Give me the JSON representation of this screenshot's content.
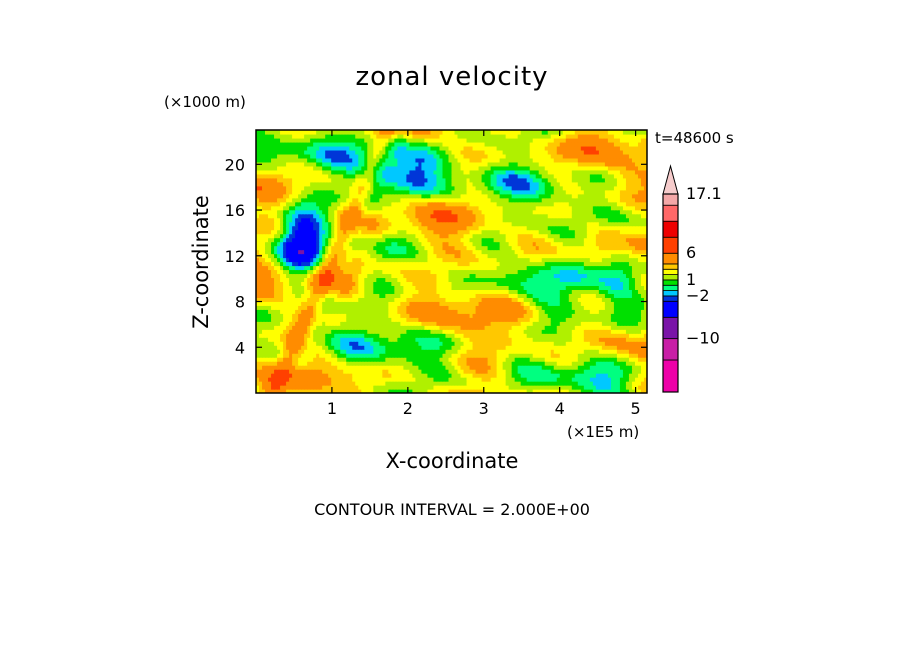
{
  "chart_data": {
    "type": "heatmap",
    "title": "zonal velocity",
    "xlabel": "X-coordinate",
    "ylabel": "Z-coordinate",
    "x_unit": "(×1E5 m)",
    "y_unit": "(×1000 m)",
    "time_label": "t=48600 s",
    "footer": "CONTOUR INTERVAL = 2.000E+00",
    "xlim": [
      0,
      5.15
    ],
    "ylim": [
      0,
      23
    ],
    "x_ticks": [
      "1",
      "2",
      "3",
      "4",
      "5"
    ],
    "y_ticks": [
      "4",
      "8",
      "12",
      "16",
      "20"
    ],
    "x_tick_values": [
      1,
      2,
      3,
      4,
      5
    ],
    "y_tick_values": [
      4,
      8,
      12,
      16,
      20
    ],
    "colorbar": {
      "tick_labels": [
        "17.1",
        "6",
        "1",
        "−2",
        "−10"
      ],
      "tick_values": [
        17.1,
        6,
        1,
        -2,
        -10
      ],
      "levels": [
        -20,
        -14,
        -10,
        -6,
        -3,
        -2,
        -1,
        0,
        1,
        2,
        3,
        4,
        6,
        9,
        12,
        15,
        17.1
      ],
      "colors": [
        "#ee00a8",
        "#c81ea6",
        "#7a14a8",
        "#0000ff",
        "#0036d8",
        "#00c8ff",
        "#00ff80",
        "#00e000",
        "#b0f000",
        "#ffff00",
        "#ffc800",
        "#ff8c00",
        "#ff4000",
        "#ee0000",
        "#ff6868",
        "#f4a8a8",
        "#f6cccc"
      ]
    },
    "field_description_note": null
  }
}
